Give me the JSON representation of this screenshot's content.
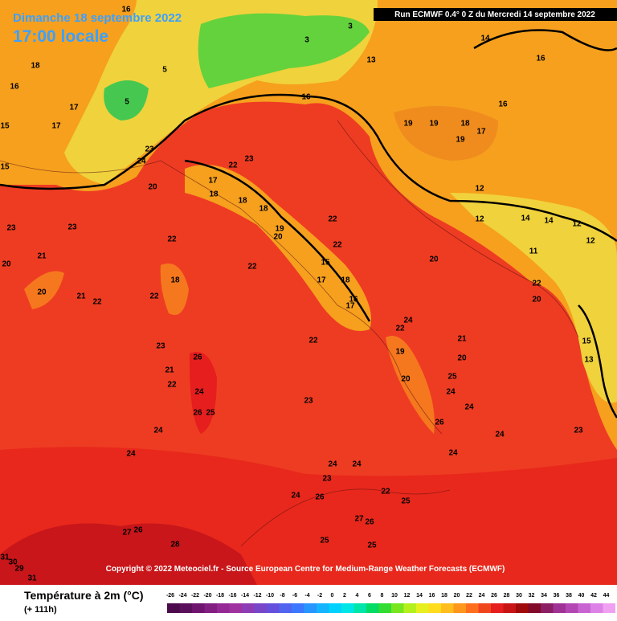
{
  "header": {
    "date": "Dimanche 18 septembre 2022",
    "time": "17:00 locale",
    "run": "Run ECMWF 0.4° 0 Z du Mercredi 14 septembre 2022"
  },
  "map": {
    "labels": [
      16,
      18,
      16,
      17,
      15,
      17,
      15,
      23,
      24,
      20,
      17,
      18,
      22,
      23,
      18,
      18,
      19,
      20,
      22,
      22,
      22,
      15,
      17,
      18,
      16,
      17,
      23,
      23,
      22,
      21,
      20,
      20,
      21,
      22,
      18,
      22,
      23,
      26,
      21,
      22,
      24,
      26,
      25,
      24,
      22,
      23,
      24,
      22,
      21,
      20,
      19,
      20,
      25,
      24,
      24,
      26,
      24,
      24,
      23,
      24,
      24,
      23,
      24,
      26,
      22,
      25,
      27,
      26,
      25,
      25,
      27,
      26,
      28,
      24,
      20,
      20,
      22,
      12,
      12,
      14,
      14,
      12,
      11,
      12,
      19,
      19,
      18,
      17,
      19,
      16,
      14,
      16,
      13,
      16,
      3,
      3,
      5,
      5,
      15,
      13,
      31,
      30,
      29,
      31
    ]
  },
  "footer": {
    "copyright": "Copyright © 2022 Meteociel.fr - Source European Centre for Medium-Range Weather Forecasts (ECMWF)"
  },
  "legend": {
    "title": "Température à 2m (°C)",
    "subtitle": "(+ 111h)",
    "ticks": [
      -26,
      -24,
      -22,
      -20,
      -18,
      -16,
      -14,
      -12,
      -10,
      -8,
      -6,
      -4,
      -2,
      0,
      2,
      4,
      6,
      8,
      10,
      12,
      14,
      16,
      18,
      20,
      22,
      24,
      26,
      28,
      30,
      32,
      34,
      36,
      38,
      40,
      42,
      44
    ],
    "colors": [
      "#4b0a4b",
      "#5a0f5a",
      "#6e146e",
      "#821e82",
      "#962896",
      "#a032a0",
      "#8c3cb4",
      "#7846c8",
      "#6450dc",
      "#5064f0",
      "#3c78ff",
      "#2896ff",
      "#14b4ff",
      "#00d2ff",
      "#00e6e6",
      "#00e6aa",
      "#00dc64",
      "#32dc32",
      "#78e61e",
      "#b4f01e",
      "#e6f01e",
      "#ffdc1e",
      "#ffbe1e",
      "#ff961e",
      "#ff6e1e",
      "#f0461e",
      "#e61e1e",
      "#c81414",
      "#a00a0a",
      "#820a28",
      "#8c1e64",
      "#a03296",
      "#b446b4",
      "#c864d2",
      "#dc82e6",
      "#f0a0f0"
    ]
  }
}
